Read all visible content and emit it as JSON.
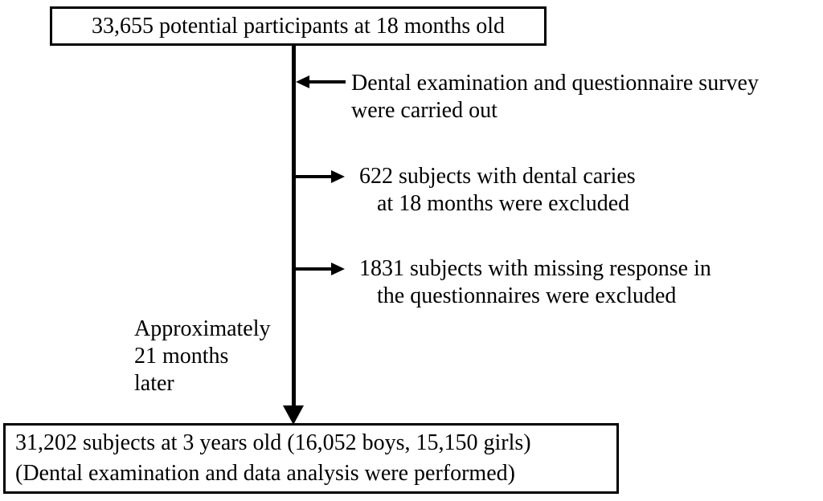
{
  "flowchart": {
    "colors": {
      "ink": "#000000",
      "background": "#ffffff"
    },
    "top_box": {
      "text": "33,655 potential participants at 18 months old"
    },
    "annotations": [
      {
        "arrow": "left",
        "lines": [
          "Dental examination and questionnaire survey",
          "were carried out"
        ]
      },
      {
        "arrow": "right",
        "lines": [
          "622 subjects with dental caries",
          "at 18 months were excluded"
        ]
      },
      {
        "arrow": "right",
        "lines": [
          "1831 subjects with missing response in",
          "the questionnaires were excluded"
        ]
      }
    ],
    "time_label": {
      "lines": [
        "Approximately",
        "21 months",
        "later"
      ]
    },
    "bottom_box": {
      "lines": [
        "31,202 subjects at 3 years old (16,052 boys, 15,150 girls)",
        "(Dental examination and data analysis were performed)"
      ]
    }
  }
}
